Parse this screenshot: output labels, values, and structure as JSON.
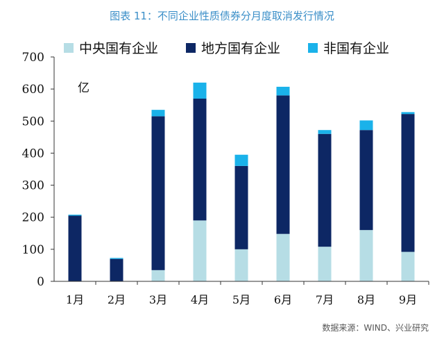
{
  "title": "图表 11：不同企业性质债券分月度取消发行情况",
  "source": "数据来源：WIND、兴业研究",
  "unit_label": "亿",
  "colors": {
    "central_soe": "#b6dde5",
    "local_soe": "#0d2764",
    "non_soe": "#1ab2ea",
    "title": "#3b8fc8"
  },
  "chart_data": {
    "type": "bar",
    "stacked": true,
    "categories": [
      "1月",
      "2月",
      "3月",
      "4月",
      "5月",
      "6月",
      "7月",
      "8月",
      "9月"
    ],
    "series": [
      {
        "name": "中央国有企业",
        "values": [
          0,
          0,
          35,
          190,
          100,
          148,
          108,
          160,
          92
        ]
      },
      {
        "name": "地方国有企业",
        "values": [
          205,
          70,
          480,
          380,
          260,
          432,
          352,
          312,
          430
        ]
      },
      {
        "name": "非国有企业",
        "values": [
          3,
          3,
          20,
          50,
          35,
          27,
          12,
          30,
          6
        ]
      }
    ],
    "yticks": [
      0,
      100,
      200,
      300,
      400,
      500,
      600,
      700
    ],
    "ylim": [
      0,
      700
    ],
    "grid": false,
    "legend": "top"
  }
}
